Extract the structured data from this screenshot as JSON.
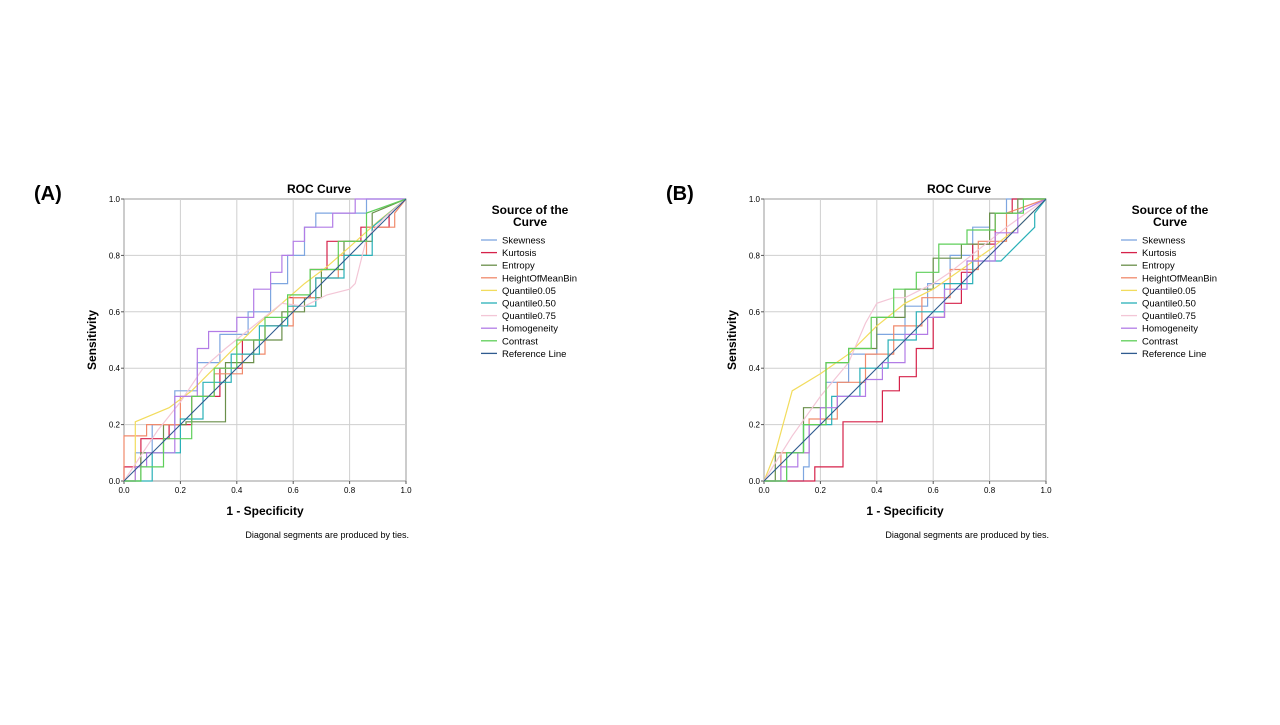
{
  "figure": {
    "panel_labels": [
      "(A)",
      "(B)"
    ]
  },
  "legend_colors": {
    "Skewness": "#7ea6e0",
    "Kurtosis": "#d6224a",
    "Entropy": "#6a8f4a",
    "HeightOfMeanBin": "#f08a6c",
    "Quantile0.05": "#f2dc5d",
    "Quantile0.50": "#2ab0b8",
    "Quantile0.75": "#f3c6d6",
    "Homogeneity": "#b27ce6",
    "Contrast": "#5fcf5a",
    "Reference Line": "#2f5b8f"
  },
  "chart_data": [
    {
      "type": "line",
      "panel_label": "(A)",
      "title": "ROC Curve",
      "xlabel": "1 - Specificity",
      "ylabel": "Sensitivity",
      "xlim": [
        0,
        1
      ],
      "ylim": [
        0,
        1
      ],
      "xticks": [
        "0.0",
        "0.2",
        "0.4",
        "0.6",
        "0.8",
        "1.0"
      ],
      "yticks": [
        "0.0",
        "0.2",
        "0.4",
        "0.6",
        "0.8",
        "1.0"
      ],
      "grid": true,
      "legend_title": "Source of the Curve",
      "legend_position": "right",
      "footnote": "Diagonal segments are produced by ties.",
      "series": [
        {
          "name": "Skewness",
          "x": [
            0,
            0.04,
            0.04,
            0.1,
            0.1,
            0.18,
            0.18,
            0.26,
            0.26,
            0.34,
            0.34,
            0.44,
            0.44,
            0.52,
            0.52,
            0.58,
            0.58,
            0.64,
            0.64,
            0.68,
            0.68,
            0.86,
            0.86,
            1
          ],
          "y": [
            0,
            0,
            0.1,
            0.1,
            0.2,
            0.2,
            0.32,
            0.32,
            0.42,
            0.42,
            0.52,
            0.52,
            0.6,
            0.6,
            0.7,
            0.7,
            0.8,
            0.8,
            0.9,
            0.9,
            0.95,
            0.95,
            1,
            1
          ]
        },
        {
          "name": "Kurtosis",
          "x": [
            0,
            0,
            0.06,
            0.06,
            0.16,
            0.16,
            0.24,
            0.24,
            0.34,
            0.34,
            0.42,
            0.42,
            0.5,
            0.5,
            0.58,
            0.58,
            0.66,
            0.66,
            0.72,
            0.72,
            0.84,
            0.84,
            0.94,
            0.94,
            1
          ],
          "y": [
            0,
            0.05,
            0.05,
            0.15,
            0.15,
            0.2,
            0.2,
            0.3,
            0.3,
            0.4,
            0.4,
            0.5,
            0.5,
            0.55,
            0.55,
            0.65,
            0.65,
            0.75,
            0.75,
            0.85,
            0.85,
            0.9,
            0.9,
            0.95,
            1
          ]
        },
        {
          "name": "Entropy",
          "x": [
            0,
            0.06,
            0.06,
            0.14,
            0.14,
            0.22,
            0.22,
            0.36,
            0.36,
            0.46,
            0.46,
            0.56,
            0.56,
            0.64,
            0.64,
            0.7,
            0.7,
            0.78,
            0.78,
            0.88,
            0.88,
            1
          ],
          "y": [
            0,
            0,
            0.1,
            0.1,
            0.2,
            0.2,
            0.21,
            0.21,
            0.42,
            0.42,
            0.5,
            0.5,
            0.6,
            0.6,
            0.65,
            0.65,
            0.75,
            0.75,
            0.85,
            0.85,
            0.95,
            1
          ]
        },
        {
          "name": "HeightOfMeanBin",
          "x": [
            0,
            0,
            0.08,
            0.08,
            0.2,
            0.2,
            0.32,
            0.32,
            0.42,
            0.42,
            0.5,
            0.5,
            0.6,
            0.6,
            0.68,
            0.68,
            0.76,
            0.76,
            0.86,
            0.86,
            0.96,
            0.96,
            1
          ],
          "y": [
            0,
            0.16,
            0.16,
            0.2,
            0.2,
            0.3,
            0.3,
            0.38,
            0.38,
            0.45,
            0.45,
            0.55,
            0.55,
            0.65,
            0.65,
            0.72,
            0.72,
            0.8,
            0.8,
            0.9,
            0.9,
            0.95,
            1
          ]
        },
        {
          "name": "Quantile0.05",
          "x": [
            0,
            0.04,
            0.04,
            0.16,
            0.24,
            0.32,
            0.4,
            0.48,
            0.56,
            0.64,
            0.72,
            0.8,
            0.9,
            1
          ],
          "y": [
            0,
            0,
            0.21,
            0.26,
            0.32,
            0.4,
            0.48,
            0.56,
            0.63,
            0.7,
            0.76,
            0.83,
            0.92,
            1
          ]
        },
        {
          "name": "Quantile0.50",
          "x": [
            0,
            0.1,
            0.1,
            0.2,
            0.2,
            0.28,
            0.28,
            0.38,
            0.38,
            0.48,
            0.48,
            0.58,
            0.58,
            0.68,
            0.68,
            0.78,
            0.78,
            0.88,
            0.88,
            1
          ],
          "y": [
            0,
            0,
            0.1,
            0.1,
            0.22,
            0.22,
            0.35,
            0.35,
            0.45,
            0.45,
            0.55,
            0.55,
            0.62,
            0.62,
            0.72,
            0.72,
            0.8,
            0.8,
            0.9,
            1
          ]
        },
        {
          "name": "Quantile0.75",
          "x": [
            0,
            0.12,
            0.2,
            0.28,
            0.36,
            0.46,
            0.56,
            0.64,
            0.72,
            0.8,
            0.82,
            0.86,
            0.92,
            1
          ],
          "y": [
            0,
            0.18,
            0.28,
            0.4,
            0.47,
            0.55,
            0.63,
            0.62,
            0.66,
            0.68,
            0.7,
            0.86,
            0.93,
            1
          ]
        },
        {
          "name": "Homogeneity",
          "x": [
            0,
            0.04,
            0.04,
            0.08,
            0.08,
            0.18,
            0.18,
            0.26,
            0.26,
            0.3,
            0.3,
            0.4,
            0.4,
            0.46,
            0.46,
            0.52,
            0.52,
            0.56,
            0.56,
            0.6,
            0.6,
            0.64,
            0.64,
            0.74,
            0.74,
            0.82,
            0.82,
            0.9,
            0.9,
            1
          ],
          "y": [
            0,
            0,
            0.05,
            0.05,
            0.1,
            0.1,
            0.3,
            0.3,
            0.47,
            0.47,
            0.53,
            0.53,
            0.58,
            0.58,
            0.68,
            0.68,
            0.74,
            0.74,
            0.8,
            0.8,
            0.85,
            0.85,
            0.9,
            0.9,
            0.95,
            0.95,
            1,
            1,
            1,
            1
          ]
        },
        {
          "name": "Contrast",
          "x": [
            0,
            0.06,
            0.06,
            0.14,
            0.14,
            0.24,
            0.24,
            0.32,
            0.32,
            0.4,
            0.4,
            0.5,
            0.5,
            0.58,
            0.58,
            0.66,
            0.66,
            0.76,
            0.76,
            0.86,
            0.86,
            1
          ],
          "y": [
            0,
            0,
            0.05,
            0.05,
            0.15,
            0.15,
            0.3,
            0.3,
            0.4,
            0.4,
            0.5,
            0.5,
            0.58,
            0.58,
            0.66,
            0.66,
            0.75,
            0.75,
            0.85,
            0.85,
            0.95,
            1
          ]
        },
        {
          "name": "Reference Line",
          "x": [
            0,
            1
          ],
          "y": [
            0,
            1
          ]
        }
      ]
    },
    {
      "type": "line",
      "panel_label": "(B)",
      "title": "ROC Curve",
      "xlabel": "1 - Specificity",
      "ylabel": "Sensitivity",
      "xlim": [
        0,
        1
      ],
      "ylim": [
        0,
        1
      ],
      "xticks": [
        "0.0",
        "0.2",
        "0.4",
        "0.6",
        "0.8",
        "1.0"
      ],
      "yticks": [
        "0.0",
        "0.2",
        "0.4",
        "0.6",
        "0.8",
        "1.0"
      ],
      "grid": true,
      "legend_title": "Source of the Curve",
      "legend_position": "right",
      "footnote": "Diagonal segments are produced by ties.",
      "series": [
        {
          "name": "Skewness",
          "x": [
            0,
            0.14,
            0.14,
            0.16,
            0.16,
            0.22,
            0.22,
            0.3,
            0.3,
            0.4,
            0.4,
            0.5,
            0.5,
            0.58,
            0.58,
            0.66,
            0.66,
            0.74,
            0.74,
            0.8,
            0.8,
            0.86,
            0.86,
            1
          ],
          "y": [
            0,
            0,
            0.05,
            0.05,
            0.2,
            0.2,
            0.35,
            0.35,
            0.45,
            0.45,
            0.52,
            0.52,
            0.62,
            0.62,
            0.7,
            0.7,
            0.8,
            0.8,
            0.9,
            0.9,
            0.95,
            0.95,
            1,
            1
          ]
        },
        {
          "name": "Kurtosis",
          "x": [
            0,
            0.18,
            0.18,
            0.28,
            0.28,
            0.42,
            0.42,
            0.48,
            0.48,
            0.54,
            0.54,
            0.6,
            0.6,
            0.64,
            0.64,
            0.7,
            0.7,
            0.74,
            0.74,
            0.82,
            0.82,
            0.88,
            0.88,
            1
          ],
          "y": [
            0,
            0,
            0.05,
            0.05,
            0.21,
            0.21,
            0.32,
            0.32,
            0.37,
            0.37,
            0.47,
            0.47,
            0.58,
            0.58,
            0.63,
            0.63,
            0.74,
            0.74,
            0.84,
            0.84,
            0.95,
            0.95,
            1,
            1
          ]
        },
        {
          "name": "Entropy",
          "x": [
            0,
            0.04,
            0.04,
            0.14,
            0.14,
            0.22,
            0.22,
            0.3,
            0.3,
            0.4,
            0.4,
            0.5,
            0.5,
            0.6,
            0.6,
            0.7,
            0.7,
            0.8,
            0.8,
            0.9,
            0.9,
            1
          ],
          "y": [
            0,
            0,
            0.1,
            0.1,
            0.26,
            0.26,
            0.42,
            0.42,
            0.47,
            0.47,
            0.58,
            0.58,
            0.68,
            0.68,
            0.79,
            0.79,
            0.84,
            0.84,
            0.95,
            0.95,
            1,
            1
          ]
        },
        {
          "name": "HeightOfMeanBin",
          "x": [
            0,
            0.06,
            0.06,
            0.16,
            0.16,
            0.26,
            0.26,
            0.36,
            0.36,
            0.46,
            0.46,
            0.56,
            0.56,
            0.66,
            0.66,
            0.76,
            0.76,
            0.86,
            0.86,
            1
          ],
          "y": [
            0,
            0,
            0.1,
            0.1,
            0.22,
            0.22,
            0.35,
            0.35,
            0.45,
            0.45,
            0.55,
            0.55,
            0.65,
            0.65,
            0.75,
            0.75,
            0.85,
            0.85,
            0.95,
            1
          ]
        },
        {
          "name": "Quantile0.05",
          "x": [
            0,
            0.04,
            0.1,
            0.2,
            0.3,
            0.4,
            0.5,
            0.6,
            0.7,
            0.8,
            0.9,
            1
          ],
          "y": [
            0,
            0.1,
            0.32,
            0.38,
            0.45,
            0.55,
            0.63,
            0.68,
            0.75,
            0.82,
            0.9,
            1
          ]
        },
        {
          "name": "Quantile0.50",
          "x": [
            0,
            0.08,
            0.08,
            0.14,
            0.14,
            0.24,
            0.24,
            0.34,
            0.34,
            0.44,
            0.44,
            0.54,
            0.54,
            0.64,
            0.64,
            0.74,
            0.74,
            0.84,
            0.9,
            0.96,
            0.96,
            1
          ],
          "y": [
            0,
            0,
            0.1,
            0.1,
            0.2,
            0.2,
            0.3,
            0.3,
            0.4,
            0.4,
            0.5,
            0.5,
            0.6,
            0.6,
            0.7,
            0.7,
            0.78,
            0.78,
            0.84,
            0.9,
            0.95,
            1
          ]
        },
        {
          "name": "Quantile0.75",
          "x": [
            0,
            0.1,
            0.2,
            0.3,
            0.36,
            0.4,
            0.46,
            0.5,
            0.56,
            0.6,
            0.66,
            0.76,
            0.86,
            1
          ],
          "y": [
            0,
            0.16,
            0.3,
            0.42,
            0.56,
            0.63,
            0.65,
            0.65,
            0.68,
            0.7,
            0.74,
            0.82,
            0.9,
            1
          ]
        },
        {
          "name": "Homogeneity",
          "x": [
            0,
            0.06,
            0.06,
            0.12,
            0.12,
            0.16,
            0.16,
            0.2,
            0.2,
            0.26,
            0.26,
            0.36,
            0.36,
            0.42,
            0.42,
            0.5,
            0.5,
            0.58,
            0.58,
            0.64,
            0.64,
            0.72,
            0.72,
            0.82,
            0.82,
            0.9,
            0.9,
            1
          ],
          "y": [
            0,
            0,
            0.05,
            0.05,
            0.1,
            0.1,
            0.2,
            0.2,
            0.26,
            0.26,
            0.3,
            0.3,
            0.36,
            0.36,
            0.42,
            0.42,
            0.52,
            0.52,
            0.58,
            0.58,
            0.68,
            0.68,
            0.78,
            0.78,
            0.88,
            0.88,
            0.95,
            1
          ]
        },
        {
          "name": "Contrast",
          "x": [
            0,
            0.08,
            0.08,
            0.14,
            0.14,
            0.22,
            0.22,
            0.3,
            0.3,
            0.38,
            0.38,
            0.46,
            0.46,
            0.54,
            0.54,
            0.62,
            0.62,
            0.72,
            0.72,
            0.82,
            0.82,
            0.92,
            0.92,
            1
          ],
          "y": [
            0,
            0,
            0.1,
            0.1,
            0.2,
            0.2,
            0.42,
            0.42,
            0.47,
            0.47,
            0.58,
            0.58,
            0.68,
            0.68,
            0.74,
            0.74,
            0.84,
            0.84,
            0.89,
            0.89,
            0.95,
            0.95,
            1,
            1
          ]
        },
        {
          "name": "Reference Line",
          "x": [
            0,
            1
          ],
          "y": [
            0,
            1
          ]
        }
      ]
    }
  ]
}
